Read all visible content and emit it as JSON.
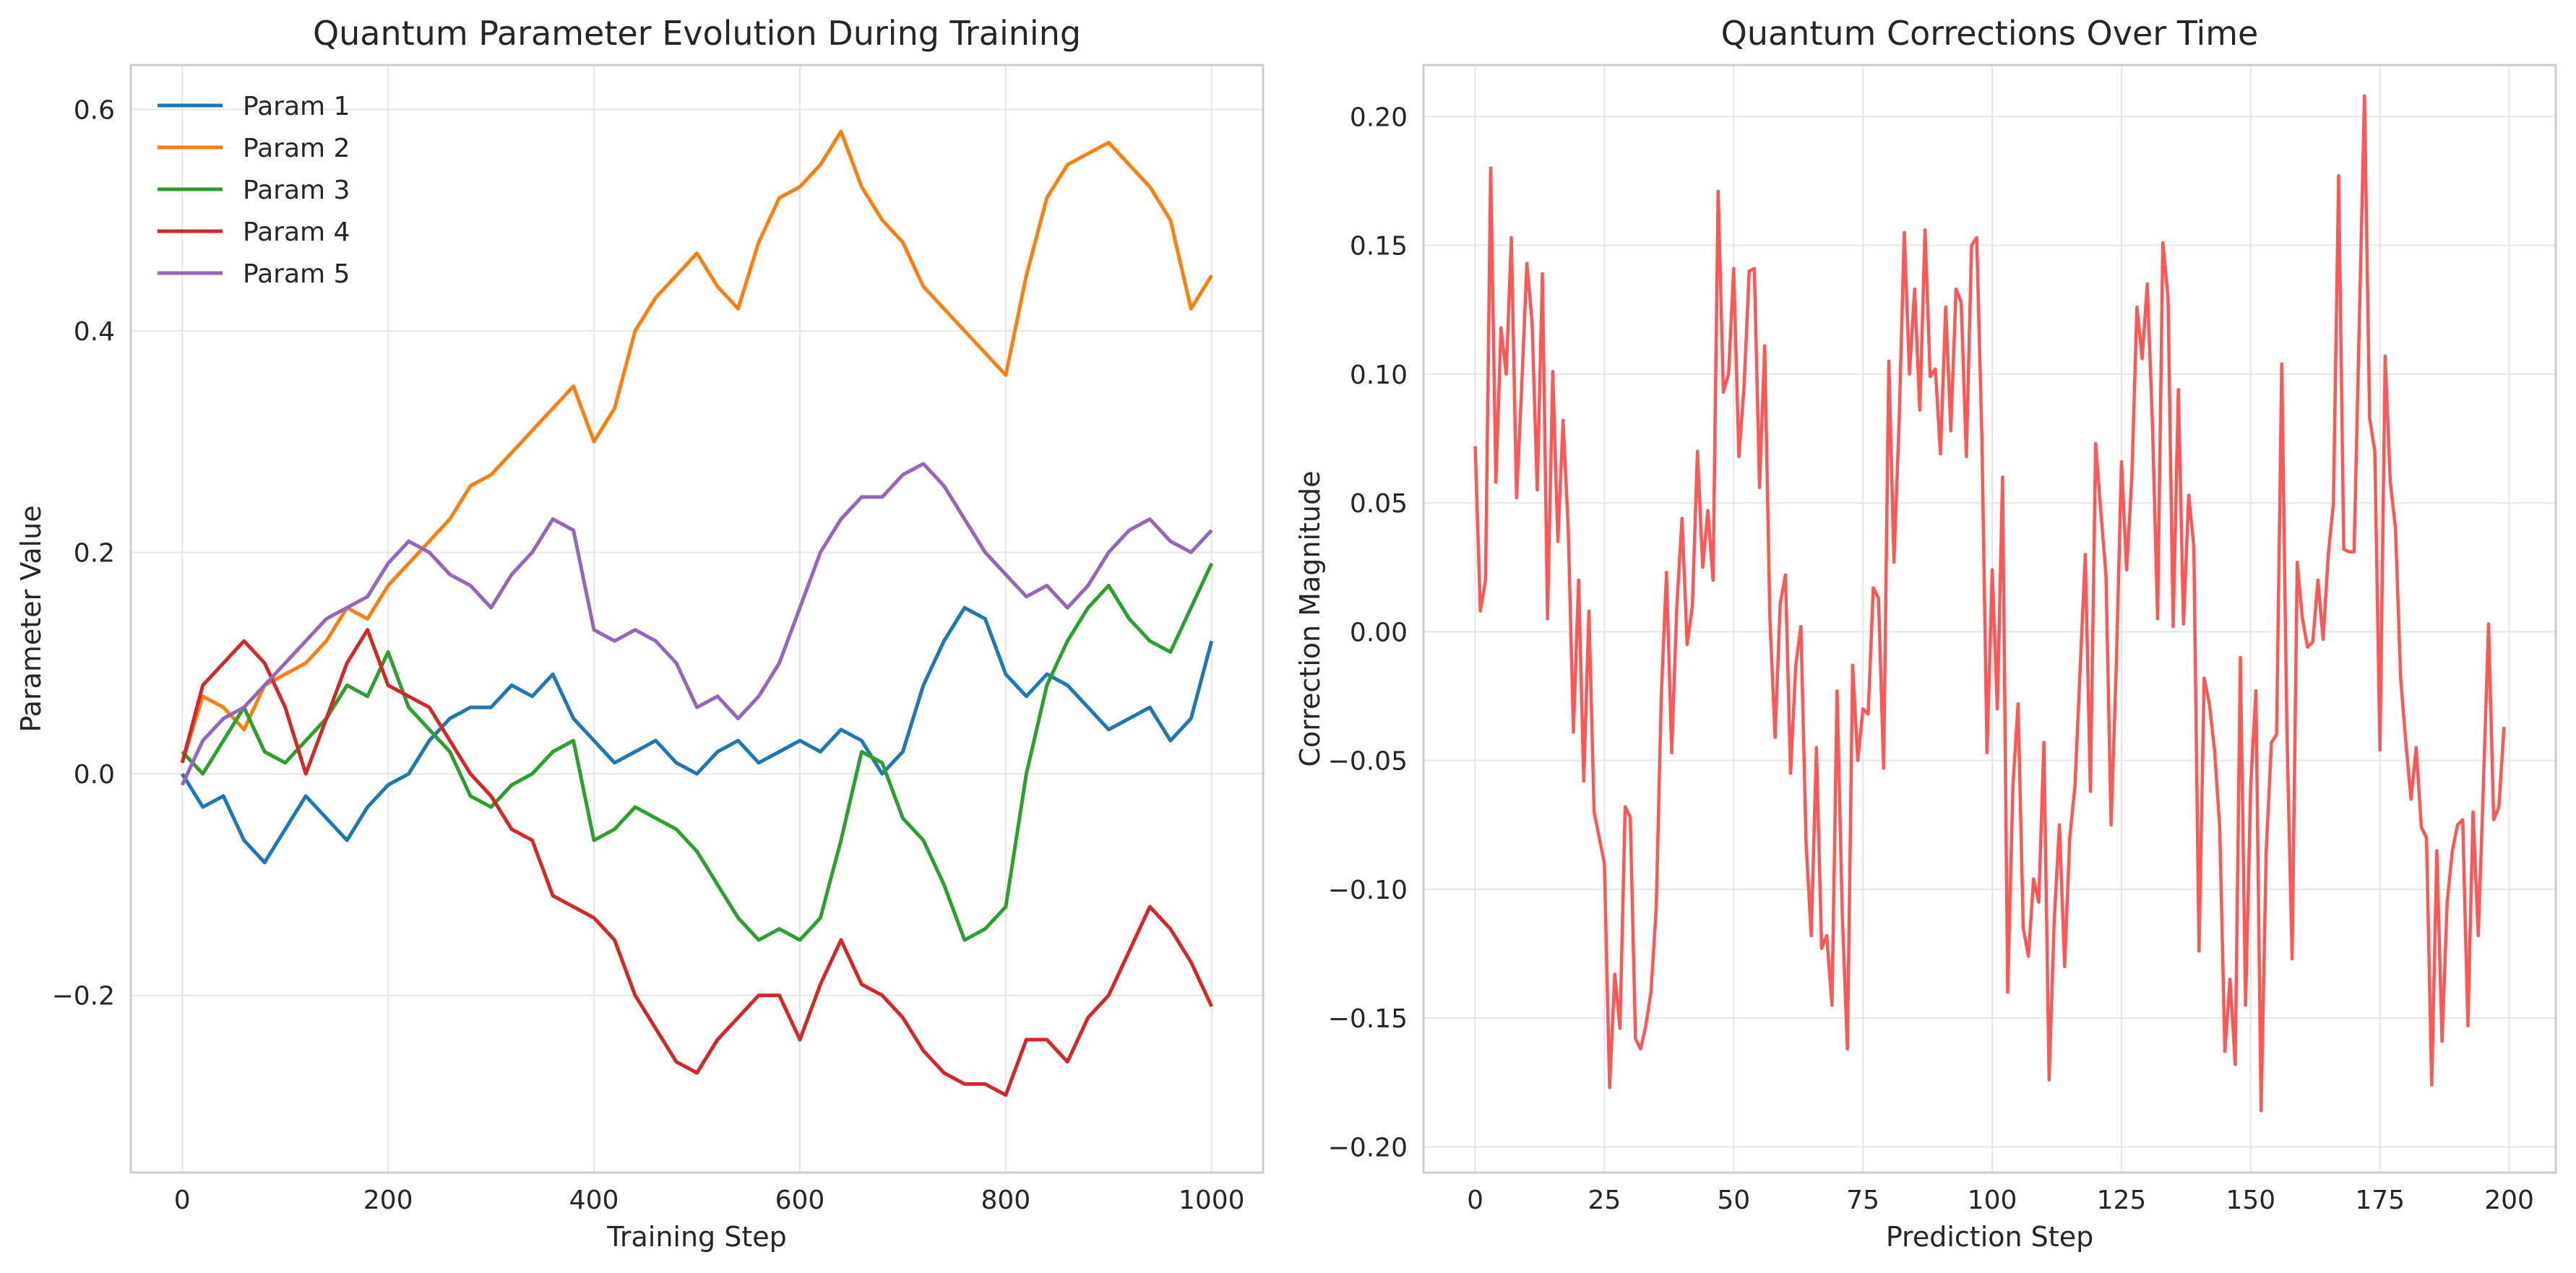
{
  "chart_data": [
    {
      "type": "line",
      "title": "Quantum Parameter Evolution During Training",
      "xlabel": "Training Step",
      "ylabel": "Parameter Value",
      "xlim": [
        -50,
        1050
      ],
      "ylim": [
        -0.36,
        0.64
      ],
      "x_ticks": [
        0,
        200,
        400,
        600,
        800,
        1000
      ],
      "x_tick_labels": [
        "0",
        "200",
        "400",
        "600",
        "800",
        "1000"
      ],
      "y_ticks": [
        -0.2,
        0.0,
        0.2,
        0.4,
        0.6
      ],
      "y_tick_labels": [
        "−0.2",
        "0.0",
        "0.2",
        "0.4",
        "0.6"
      ],
      "grid": true,
      "legend_position": "top-left",
      "x_step": 20,
      "series": [
        {
          "name": "Param 1",
          "color": "#1f77b4",
          "values": [
            0.0,
            -0.03,
            -0.02,
            -0.06,
            -0.08,
            -0.05,
            -0.02,
            -0.04,
            -0.06,
            -0.03,
            -0.01,
            0.0,
            0.03,
            0.05,
            0.06,
            0.06,
            0.08,
            0.07,
            0.09,
            0.05,
            0.03,
            0.01,
            0.02,
            0.03,
            0.01,
            0.0,
            0.02,
            0.03,
            0.01,
            0.02,
            0.03,
            0.02,
            0.04,
            0.03,
            0.0,
            0.02,
            0.08,
            0.12,
            0.15,
            0.14,
            0.09,
            0.07,
            0.09,
            0.08,
            0.06,
            0.04,
            0.05,
            0.06,
            0.03,
            0.05,
            0.12
          ]
        },
        {
          "name": "Param 2",
          "color": "#ff7f0e",
          "values": [
            0.01,
            0.07,
            0.06,
            0.04,
            0.08,
            0.09,
            0.1,
            0.12,
            0.15,
            0.14,
            0.17,
            0.19,
            0.21,
            0.23,
            0.26,
            0.27,
            0.29,
            0.31,
            0.33,
            0.35,
            0.3,
            0.33,
            0.4,
            0.43,
            0.45,
            0.47,
            0.44,
            0.42,
            0.48,
            0.52,
            0.53,
            0.55,
            0.58,
            0.53,
            0.5,
            0.48,
            0.44,
            0.42,
            0.4,
            0.38,
            0.36,
            0.45,
            0.52,
            0.55,
            0.56,
            0.57,
            0.55,
            0.53,
            0.5,
            0.42,
            0.45
          ]
        },
        {
          "name": "Param 3",
          "color": "#2ca02c",
          "values": [
            0.02,
            0.0,
            0.03,
            0.06,
            0.02,
            0.01,
            0.03,
            0.05,
            0.08,
            0.07,
            0.11,
            0.06,
            0.04,
            0.02,
            -0.02,
            -0.03,
            -0.01,
            0.0,
            0.02,
            0.03,
            -0.06,
            -0.05,
            -0.03,
            -0.04,
            -0.05,
            -0.07,
            -0.1,
            -0.13,
            -0.15,
            -0.14,
            -0.15,
            -0.13,
            -0.06,
            0.02,
            0.01,
            -0.04,
            -0.06,
            -0.1,
            -0.15,
            -0.14,
            -0.12,
            0.0,
            0.08,
            0.12,
            0.15,
            0.17,
            0.14,
            0.12,
            0.11,
            0.15,
            0.19
          ]
        },
        {
          "name": "Param 4",
          "color": "#d62728",
          "values": [
            0.01,
            0.08,
            0.1,
            0.12,
            0.1,
            0.06,
            0.0,
            0.05,
            0.1,
            0.13,
            0.08,
            0.07,
            0.06,
            0.03,
            0.0,
            -0.02,
            -0.05,
            -0.06,
            -0.11,
            -0.12,
            -0.13,
            -0.15,
            -0.2,
            -0.23,
            -0.26,
            -0.27,
            -0.24,
            -0.22,
            -0.2,
            -0.2,
            -0.24,
            -0.19,
            -0.15,
            -0.19,
            -0.2,
            -0.22,
            -0.25,
            -0.27,
            -0.28,
            -0.28,
            -0.29,
            -0.24,
            -0.24,
            -0.26,
            -0.22,
            -0.2,
            -0.16,
            -0.12,
            -0.14,
            -0.17,
            -0.21
          ]
        },
        {
          "name": "Param 5",
          "color": "#9467bd",
          "values": [
            -0.01,
            0.03,
            0.05,
            0.06,
            0.08,
            0.1,
            0.12,
            0.14,
            0.15,
            0.16,
            0.19,
            0.21,
            0.2,
            0.18,
            0.17,
            0.15,
            0.18,
            0.2,
            0.23,
            0.22,
            0.13,
            0.12,
            0.13,
            0.12,
            0.1,
            0.06,
            0.07,
            0.05,
            0.07,
            0.1,
            0.15,
            0.2,
            0.23,
            0.25,
            0.25,
            0.27,
            0.28,
            0.26,
            0.23,
            0.2,
            0.18,
            0.16,
            0.17,
            0.15,
            0.17,
            0.2,
            0.22,
            0.23,
            0.21,
            0.2,
            0.22
          ]
        }
      ]
    },
    {
      "type": "line",
      "title": "Quantum Corrections Over Time",
      "xlabel": "Prediction Step",
      "ylabel": "Correction Magnitude",
      "xlim": [
        -10,
        209
      ],
      "ylim": [
        -0.21,
        0.22
      ],
      "x_ticks": [
        0,
        25,
        50,
        75,
        100,
        125,
        150,
        175,
        200
      ],
      "x_tick_labels": [
        "0",
        "25",
        "50",
        "75",
        "100",
        "125",
        "150",
        "175",
        "200"
      ],
      "y_ticks": [
        -0.2,
        -0.15,
        -0.1,
        -0.05,
        0.0,
        0.05,
        0.1,
        0.15,
        0.2
      ],
      "y_tick_labels": [
        "−0.20",
        "−0.15",
        "−0.10",
        "−0.05",
        "0.00",
        "0.05",
        "0.10",
        "0.15",
        "0.20"
      ],
      "grid": true,
      "x_step": 1,
      "series": [
        {
          "name": "",
          "color": "#ff4d4d",
          "values": [
            0.072,
            0.008,
            0.02,
            0.18,
            0.058,
            0.118,
            0.1,
            0.153,
            0.052,
            0.095,
            0.143,
            0.12,
            0.055,
            0.139,
            0.005,
            0.101,
            0.035,
            0.082,
            0.04,
            -0.039,
            0.02,
            -0.058,
            0.008,
            -0.07,
            -0.08,
            -0.09,
            -0.177,
            -0.133,
            -0.154,
            -0.068,
            -0.072,
            -0.158,
            -0.162,
            -0.153,
            -0.14,
            -0.108,
            -0.025,
            0.023,
            -0.047,
            0.01,
            0.044,
            -0.005,
            0.01,
            0.07,
            0.025,
            0.047,
            0.02,
            0.171,
            0.093,
            0.1,
            0.141,
            0.068,
            0.095,
            0.14,
            0.141,
            0.056,
            0.111,
            0.005,
            -0.041,
            0.011,
            0.022,
            -0.055,
            -0.013,
            0.002,
            -0.082,
            -0.118,
            -0.045,
            -0.123,
            -0.118,
            -0.145,
            -0.023,
            -0.11,
            -0.162,
            -0.013,
            -0.05,
            -0.03,
            -0.032,
            0.017,
            0.013,
            -0.053,
            0.105,
            0.027,
            0.082,
            0.155,
            0.1,
            0.133,
            0.086,
            0.156,
            0.099,
            0.102,
            0.069,
            0.126,
            0.078,
            0.133,
            0.128,
            0.068,
            0.15,
            0.153,
            0.075,
            -0.047,
            0.024,
            -0.03,
            0.06,
            -0.14,
            -0.06,
            -0.028,
            -0.115,
            -0.126,
            -0.096,
            -0.105,
            -0.043,
            -0.174,
            -0.112,
            -0.075,
            -0.13,
            -0.08,
            -0.06,
            -0.015,
            0.03,
            -0.062,
            0.073,
            0.047,
            0.022,
            -0.075,
            -0.013,
            0.066,
            0.024,
            0.06,
            0.126,
            0.106,
            0.135,
            0.08,
            0.005,
            0.151,
            0.13,
            0.002,
            0.094,
            0.003,
            0.053,
            0.033,
            -0.124,
            -0.018,
            -0.028,
            -0.046,
            -0.076,
            -0.163,
            -0.135,
            -0.168,
            -0.01,
            -0.145,
            -0.06,
            -0.023,
            -0.186,
            -0.085,
            -0.043,
            -0.04,
            0.104,
            -0.038,
            -0.127,
            0.027,
            0.005,
            -0.006,
            -0.004,
            0.02,
            -0.003,
            0.03,
            0.05,
            0.177,
            0.032,
            0.031,
            0.031,
            0.12,
            0.208,
            0.083,
            0.07,
            -0.046,
            0.107,
            0.058,
            0.04,
            -0.018,
            -0.043,
            -0.065,
            -0.045,
            -0.076,
            -0.08,
            -0.176,
            -0.085,
            -0.159,
            -0.105,
            -0.085,
            -0.075,
            -0.073,
            -0.153,
            -0.07,
            -0.118,
            -0.06,
            0.003,
            -0.073,
            -0.068,
            -0.037
          ]
        }
      ]
    }
  ]
}
